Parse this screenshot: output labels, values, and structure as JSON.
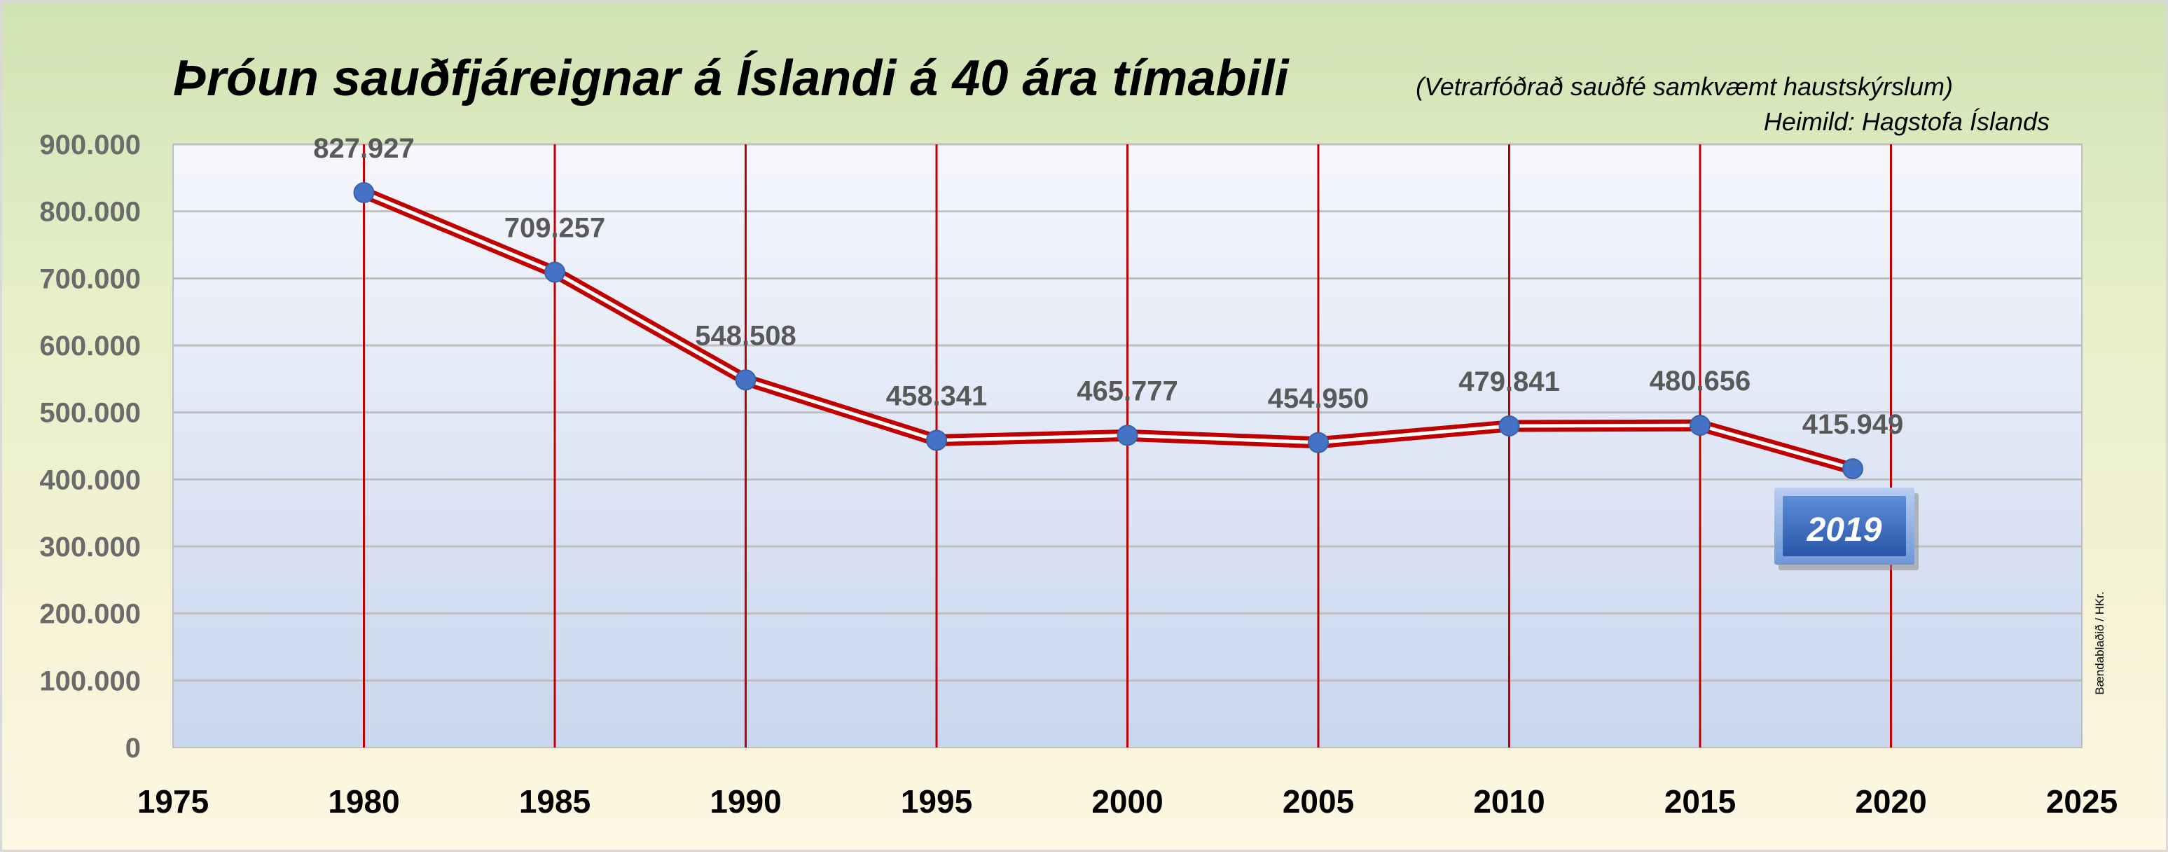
{
  "chart_data": {
    "type": "line",
    "title": "Þróun sauðfjáreignar á Íslandi á 40 ára tímabili",
    "subtitle": "(Vetrarfóðrað sauðfé samkvæmt haustskýrslum)",
    "source": "Heimild: Hagstofa Íslands",
    "credit": "Bændablaðið / HKr.",
    "badge": "2019",
    "x": [
      1980,
      1985,
      1990,
      1995,
      2000,
      2005,
      2010,
      2015,
      2019
    ],
    "y": [
      827927,
      709257,
      548508,
      458341,
      465777,
      454950,
      479841,
      480656,
      415949
    ],
    "data_labels": [
      "827.927",
      "709.257",
      "548.508",
      "458.341",
      "465.777",
      "454.950",
      "479.841",
      "480.656",
      "415.949"
    ],
    "xlim": [
      1975,
      2025
    ],
    "ylim": [
      0,
      900000
    ],
    "x_ticks": [
      "1975",
      "1980",
      "1985",
      "1990",
      "1995",
      "2000",
      "2005",
      "2010",
      "2015",
      "2020",
      "2025"
    ],
    "y_ticks": [
      "0",
      "100.000",
      "200.000",
      "300.000",
      "400.000",
      "500.000",
      "600.000",
      "700.000",
      "800.000",
      "900.000"
    ],
    "xlabel": "",
    "ylabel": "",
    "grid": true,
    "legend": "none",
    "colors": {
      "line": "#c00000",
      "marker": "#4472c4",
      "vertical_grid": "#c00000",
      "horizontal_grid": "#bfbfbf",
      "badge": "#3a67b8"
    }
  }
}
